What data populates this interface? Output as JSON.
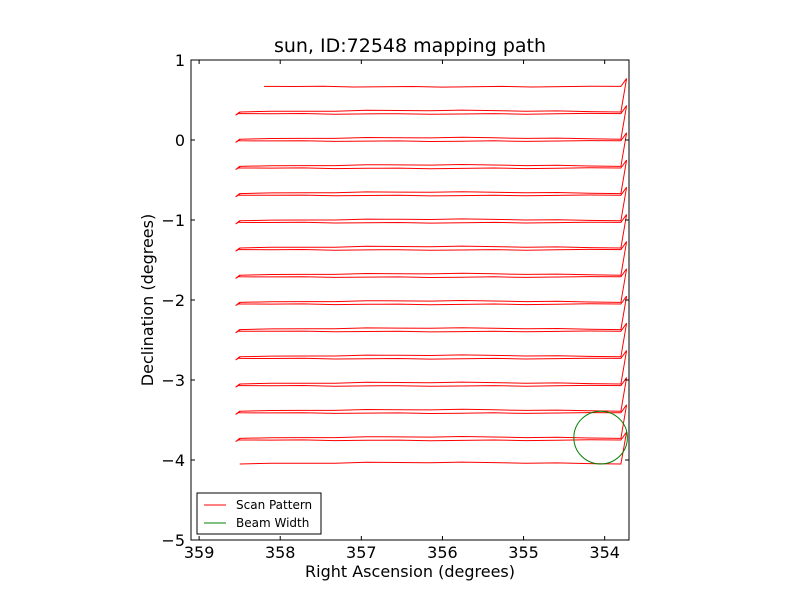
{
  "chart_data": {
    "type": "line",
    "title": "sun, ID:72548 mapping path",
    "xlabel": "Right Ascension (degrees)",
    "ylabel": "Declination (degrees)",
    "xlim": [
      359.1,
      353.7
    ],
    "ylim": [
      -5,
      1
    ],
    "x_ticks": [
      {
        "value": 359,
        "label": "359"
      },
      {
        "value": 358,
        "label": "358"
      },
      {
        "value": 357,
        "label": "357"
      },
      {
        "value": 356,
        "label": "356"
      },
      {
        "value": 355,
        "label": "355"
      },
      {
        "value": 354,
        "label": "354"
      }
    ],
    "y_ticks": [
      {
        "value": 1,
        "label": "1"
      },
      {
        "value": 0,
        "label": "0"
      },
      {
        "value": -1,
        "label": "−1"
      },
      {
        "value": -2,
        "label": "−2"
      },
      {
        "value": -3,
        "label": "−3"
      },
      {
        "value": -4,
        "label": "−4"
      },
      {
        "value": -5,
        "label": "−5"
      }
    ],
    "grid": false,
    "legend_position": "lower-left",
    "series": [
      {
        "name": "Scan Pattern",
        "color": "#ff0000",
        "rows": [
          {
            "y": 0.67,
            "dir": "right",
            "x_start": 358.2,
            "x_end": 353.8,
            "turn_y": 0.68,
            "turn_x": 353.75
          },
          {
            "y": 0.35,
            "dir": "left",
            "x_start": 353.8,
            "x_end": 358.5,
            "dip": 0.48
          },
          {
            "y": 0.33,
            "dir": "right",
            "x_start": 358.5,
            "x_end": 353.8
          },
          {
            "y": 0.01,
            "dir": "left",
            "x_start": 353.8,
            "x_end": 358.5
          },
          {
            "y": -0.01,
            "dir": "right",
            "x_start": 358.5,
            "x_end": 353.8
          },
          {
            "y": -0.33,
            "dir": "left",
            "x_start": 353.8,
            "x_end": 358.5
          },
          {
            "y": -0.35,
            "dir": "right",
            "x_start": 358.5,
            "x_end": 353.8
          },
          {
            "y": -0.67,
            "dir": "left",
            "x_start": 353.8,
            "x_end": 358.5
          },
          {
            "y": -0.69,
            "dir": "right",
            "x_start": 358.5,
            "x_end": 353.8
          },
          {
            "y": -1.01,
            "dir": "left",
            "x_start": 353.8,
            "x_end": 358.5
          },
          {
            "y": -1.03,
            "dir": "right",
            "x_start": 358.5,
            "x_end": 353.8
          },
          {
            "y": -1.35,
            "dir": "left",
            "x_start": 353.8,
            "x_end": 358.5
          },
          {
            "y": -1.37,
            "dir": "right",
            "x_start": 358.5,
            "x_end": 353.8
          },
          {
            "y": -1.69,
            "dir": "left",
            "x_start": 353.8,
            "x_end": 358.5
          },
          {
            "y": -1.71,
            "dir": "right",
            "x_start": 358.5,
            "x_end": 353.8
          },
          {
            "y": -2.03,
            "dir": "left",
            "x_start": 353.8,
            "x_end": 358.5
          },
          {
            "y": -2.05,
            "dir": "right",
            "x_start": 358.5,
            "x_end": 353.8
          },
          {
            "y": -2.37,
            "dir": "left",
            "x_start": 353.8,
            "x_end": 358.5
          },
          {
            "y": -2.39,
            "dir": "right",
            "x_start": 358.5,
            "x_end": 353.8
          },
          {
            "y": -2.71,
            "dir": "left",
            "x_start": 353.8,
            "x_end": 358.5
          },
          {
            "y": -2.73,
            "dir": "right",
            "x_start": 358.5,
            "x_end": 353.8
          },
          {
            "y": -3.05,
            "dir": "left",
            "x_start": 353.8,
            "x_end": 358.5
          },
          {
            "y": -3.07,
            "dir": "right",
            "x_start": 358.5,
            "x_end": 353.8
          },
          {
            "y": -3.39,
            "dir": "left",
            "x_start": 353.8,
            "x_end": 358.5
          },
          {
            "y": -3.41,
            "dir": "right",
            "x_start": 358.5,
            "x_end": 353.8
          },
          {
            "y": -3.73,
            "dir": "left",
            "x_start": 353.8,
            "x_end": 358.5
          },
          {
            "y": -3.75,
            "dir": "right",
            "x_start": 358.5,
            "x_end": 353.8
          },
          {
            "y": -4.05,
            "dir": "left",
            "x_start": 353.8,
            "x_end": 358.5
          }
        ]
      },
      {
        "name": "Beam Width",
        "color": "#008000",
        "circle": {
          "cx": 354.05,
          "cy": -3.72,
          "r_deg": 0.33
        }
      }
    ],
    "legend": [
      {
        "label": "Scan Pattern",
        "color": "#ff0000"
      },
      {
        "label": "Beam Width",
        "color": "#008000"
      }
    ]
  }
}
